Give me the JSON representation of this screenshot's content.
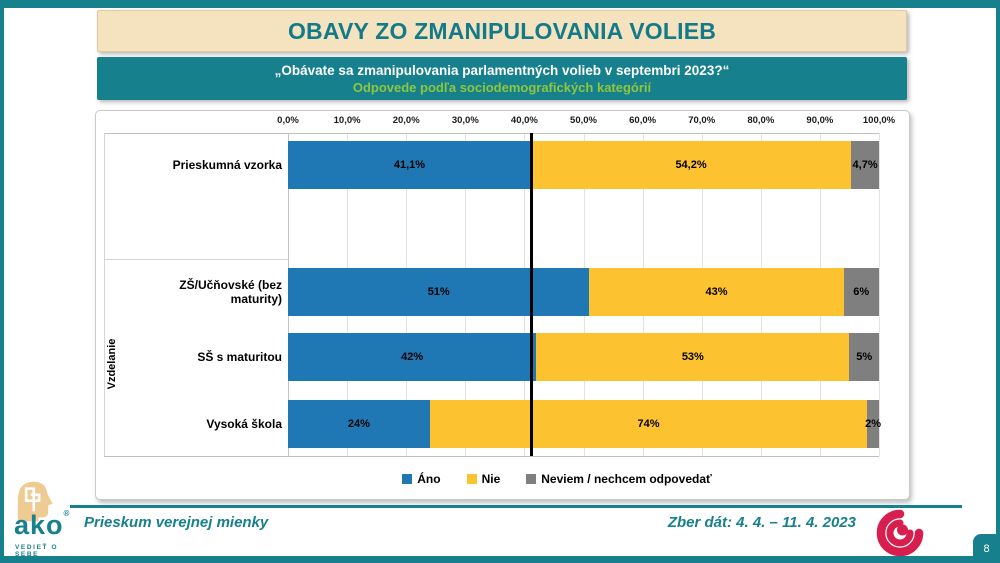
{
  "theme": {
    "teal": "#17808D",
    "beige": "#F5E2BE",
    "green": "#8DC63F",
    "ref_line_color": "#000000"
  },
  "title": {
    "text": "OBAVY ZO ZMANIPULOVANIA VOLIEB"
  },
  "subtitle": {
    "line1": "„Obávate sa zmanipulovania parlamentných volieb v septembri 2023?“",
    "line2": "Odpovede podľa sociodemografických kategórií"
  },
  "chart_data": {
    "type": "bar",
    "orientation": "horizontal",
    "stacked": true,
    "x_axis": {
      "min": 0,
      "max": 100,
      "ticks": [
        "0,0%",
        "10,0%",
        "20,0%",
        "30,0%",
        "40,0%",
        "50,0%",
        "60,0%",
        "70,0%",
        "80,0%",
        "90,0%",
        "100,0%"
      ]
    },
    "categories": [
      "Prieskumná vzorka",
      "ZŠ/Učňovské (bez maturity)",
      "SŠ s maturitou",
      "Vysoká škola"
    ],
    "groups": [
      {
        "label": "",
        "rows": [
          0
        ]
      },
      {
        "label": "Vzdelanie",
        "rows": [
          1,
          2,
          3
        ]
      }
    ],
    "series": [
      {
        "name": "Áno",
        "color": "#1F77B4",
        "values": [
          41.1,
          51,
          42,
          24
        ],
        "labels": [
          "41,1%",
          "51%",
          "42%",
          "24%"
        ]
      },
      {
        "name": "Nie",
        "color": "#FDC230",
        "values": [
          54.2,
          43,
          53,
          74
        ],
        "labels": [
          "54,2%",
          "43%",
          "53%",
          "74%"
        ]
      },
      {
        "name": "Neviem / nechcem odpovedať",
        "color": "#7F7F7F",
        "values": [
          4.7,
          6,
          5,
          2
        ],
        "labels": [
          "4,7%",
          "6%",
          "5%",
          "2%"
        ]
      }
    ],
    "reference_line": 41.1,
    "grid": true,
    "legend_position": "bottom"
  },
  "footer": {
    "left": "Prieskum verejnej mienky",
    "right": "Zber dát: 4. 4. – 11. 4. 2023",
    "logo_word": "ako",
    "logo_reg": "®",
    "logo_tagline": "VEDIEŤ O SEBE",
    "page_number": "8"
  }
}
